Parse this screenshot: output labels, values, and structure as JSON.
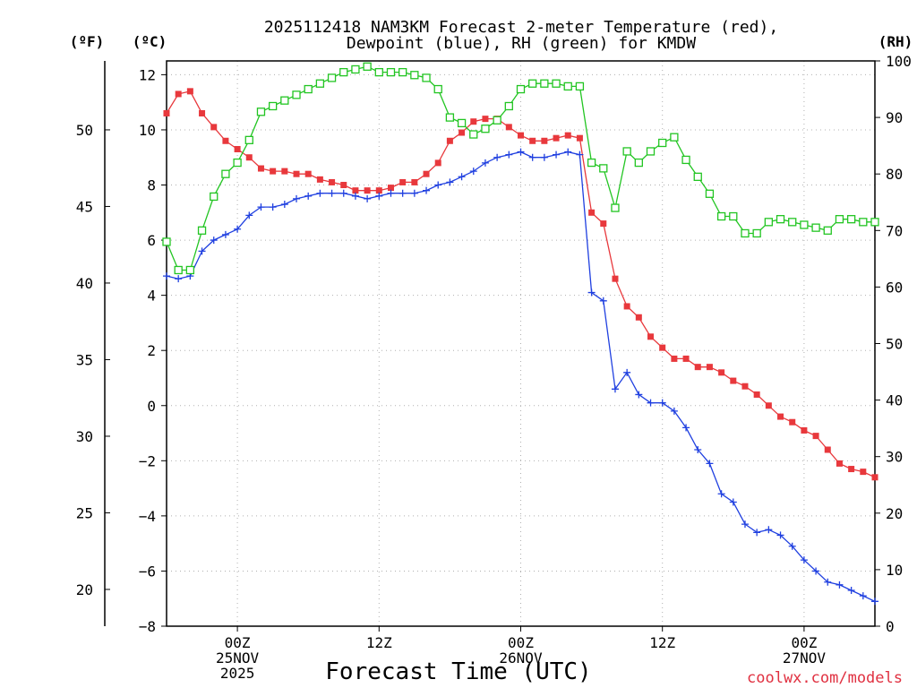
{
  "chart_data": {
    "type": "line",
    "title_line1": "2025112418 NAM3KM Forecast 2-meter Temperature (red),",
    "title_line2": "Dewpoint (blue), RH (green) for KMDW",
    "xlabel": "Forecast Time (UTC)",
    "credit": "coolwx.com/models",
    "units": {
      "fahrenheit": "(ºF)",
      "celsius": "(ºC)",
      "rh": "(RH)"
    },
    "x_range_hours": [
      0,
      60
    ],
    "x_ticks": [
      {
        "hour": 6,
        "lines": [
          "00Z",
          "25NOV",
          "2025"
        ]
      },
      {
        "hour": 18,
        "lines": [
          "12Z"
        ]
      },
      {
        "hour": 30,
        "lines": [
          "00Z",
          "26NOV"
        ]
      },
      {
        "hour": 42,
        "lines": [
          "12Z"
        ]
      },
      {
        "hour": 54,
        "lines": [
          "00Z",
          "27NOV"
        ]
      }
    ],
    "y_celsius": {
      "range": [
        -8,
        12.5
      ],
      "ticks": [
        "12",
        "10",
        "8",
        "6",
        "4",
        "2",
        "0",
        "−2",
        "−4",
        "−6",
        "−8"
      ]
    },
    "y_fahrenheit": {
      "ticks": [
        "50",
        "45",
        "40",
        "35",
        "30",
        "25",
        "20"
      ]
    },
    "y_rh": {
      "range": [
        0,
        100
      ],
      "ticks": [
        "100",
        "90",
        "80",
        "70",
        "60",
        "50",
        "40",
        "30",
        "20",
        "10",
        "0"
      ]
    },
    "series": [
      {
        "name": "Temperature (°C)",
        "color": "#e8383c",
        "marker": "filled-square",
        "axis": "celsius",
        "x": [
          0,
          1,
          2,
          3,
          4,
          5,
          6,
          7,
          8,
          9,
          10,
          11,
          12,
          13,
          14,
          15,
          16,
          17,
          18,
          19,
          20,
          21,
          22,
          23,
          24,
          25,
          26,
          27,
          28,
          29,
          30,
          31,
          32,
          33,
          34,
          35,
          36,
          37,
          38,
          39,
          40,
          41,
          42,
          43,
          44,
          45,
          46,
          47,
          48,
          49,
          50,
          51,
          52,
          53,
          54,
          55,
          56,
          57,
          58,
          59,
          60
        ],
        "values": [
          10.6,
          11.3,
          11.4,
          10.6,
          10.1,
          9.6,
          9.3,
          9.0,
          8.6,
          8.5,
          8.5,
          8.4,
          8.4,
          8.2,
          8.1,
          8.0,
          7.8,
          7.8,
          7.8,
          7.9,
          8.1,
          8.1,
          8.4,
          8.8,
          9.6,
          9.9,
          10.3,
          10.4,
          10.4,
          10.1,
          9.8,
          9.6,
          9.6,
          9.7,
          9.8,
          9.7,
          7.0,
          6.6,
          4.6,
          3.6,
          3.2,
          2.5,
          2.1,
          1.7,
          1.7,
          1.4,
          1.4,
          1.2,
          0.9,
          0.7,
          0.4,
          0.0,
          -0.4,
          -0.6,
          -0.9,
          -1.1,
          -1.6,
          -2.1,
          -2.3,
          -2.4,
          -2.6
        ]
      },
      {
        "name": "Dewpoint (°C)",
        "color": "#2040e0",
        "marker": "plus",
        "axis": "celsius",
        "x": [
          0,
          1,
          2,
          3,
          4,
          5,
          6,
          7,
          8,
          9,
          10,
          11,
          12,
          13,
          14,
          15,
          16,
          17,
          18,
          19,
          20,
          21,
          22,
          23,
          24,
          25,
          26,
          27,
          28,
          29,
          30,
          31,
          32,
          33,
          34,
          35,
          36,
          37,
          38,
          39,
          40,
          41,
          42,
          43,
          44,
          45,
          46,
          47,
          48,
          49,
          50,
          51,
          52,
          53,
          54,
          55,
          56,
          57,
          58,
          59,
          60
        ],
        "values": [
          4.7,
          4.6,
          4.7,
          5.6,
          6.0,
          6.2,
          6.4,
          6.9,
          7.2,
          7.2,
          7.3,
          7.5,
          7.6,
          7.7,
          7.7,
          7.7,
          7.6,
          7.5,
          7.6,
          7.7,
          7.7,
          7.7,
          7.8,
          8.0,
          8.1,
          8.3,
          8.5,
          8.8,
          9.0,
          9.1,
          9.2,
          9.0,
          9.0,
          9.1,
          9.2,
          9.1,
          4.1,
          3.8,
          0.6,
          1.2,
          0.4,
          0.1,
          0.1,
          -0.2,
          -0.8,
          -1.6,
          -2.1,
          -3.2,
          -3.5,
          -4.3,
          -4.6,
          -4.5,
          -4.7,
          -5.1,
          -5.6,
          -6.0,
          -6.4,
          -6.5,
          -6.7,
          -6.9,
          -7.1
        ]
      },
      {
        "name": "Relative Humidity (%)",
        "color": "#22c522",
        "marker": "open-square",
        "axis": "rh",
        "x": [
          0,
          1,
          2,
          3,
          4,
          5,
          6,
          7,
          8,
          9,
          10,
          11,
          12,
          13,
          14,
          15,
          16,
          17,
          18,
          19,
          20,
          21,
          22,
          23,
          24,
          25,
          26,
          27,
          28,
          29,
          30,
          31,
          32,
          33,
          34,
          35,
          36,
          37,
          38,
          39,
          40,
          41,
          42,
          43,
          44,
          45,
          46,
          47,
          48,
          49,
          50,
          51,
          52,
          53,
          54,
          55,
          56,
          57,
          58,
          59,
          60
        ],
        "values": [
          68,
          63,
          63,
          70,
          76,
          80,
          82,
          86,
          91,
          92,
          93,
          94,
          95,
          96,
          97,
          98,
          98.5,
          99,
          98,
          98,
          98,
          97.5,
          97,
          95,
          90,
          89,
          87,
          88,
          89.5,
          92,
          95,
          96,
          96,
          96,
          95.5,
          95.5,
          82,
          81,
          74,
          84,
          82,
          84,
          85.5,
          86.5,
          82.5,
          79.5,
          76.5,
          72.5,
          72.5,
          69.5,
          69.5,
          71.5,
          72,
          71.5,
          71,
          70.5,
          70,
          72,
          72,
          71.5,
          71.5
        ]
      }
    ]
  }
}
